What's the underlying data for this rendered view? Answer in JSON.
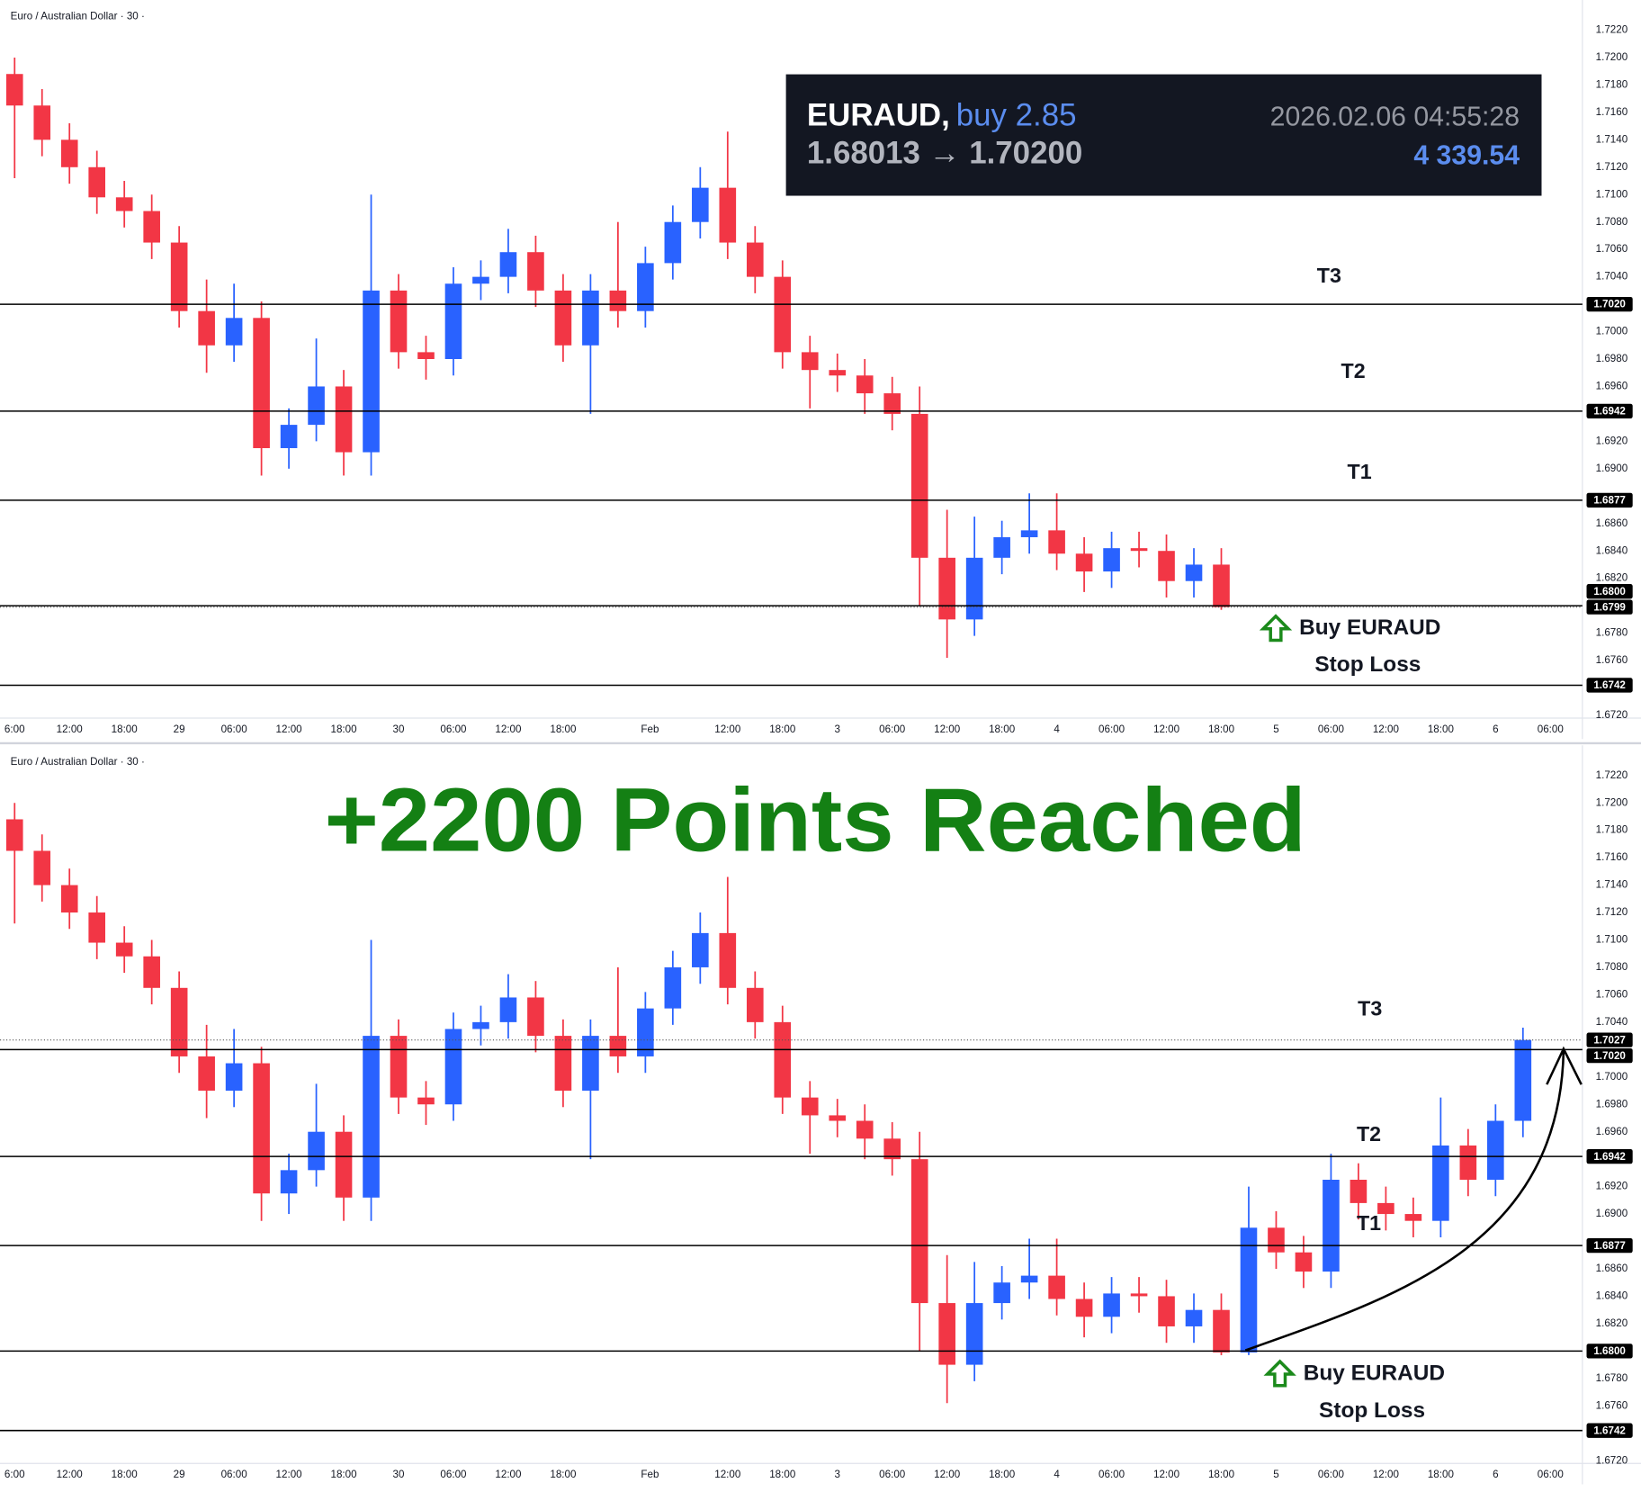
{
  "chart_data": [
    {
      "type": "candlestick",
      "title": "Euro / Australian Dollar · 30 ·",
      "up_color": "#2962ff",
      "down_color": "#f23645",
      "xlim": [
        4.4,
        177.5
      ],
      "ylim": [
        1.6718,
        1.7242
      ],
      "xticks": [
        {
          "value": 6,
          "label": "6:00"
        },
        {
          "value": 12,
          "label": "12:00"
        },
        {
          "value": 18,
          "label": "18:00"
        },
        {
          "value": 24,
          "label": "29"
        },
        {
          "value": 30,
          "label": "06:00"
        },
        {
          "value": 36,
          "label": "12:00"
        },
        {
          "value": 42,
          "label": "18:00"
        },
        {
          "value": 48,
          "label": "30"
        },
        {
          "value": 54,
          "label": "06:00"
        },
        {
          "value": 60,
          "label": "12:00"
        },
        {
          "value": 66,
          "label": "18:00"
        },
        {
          "value": 75.5,
          "label": "Feb"
        },
        {
          "value": 84,
          "label": "12:00"
        },
        {
          "value": 90,
          "label": "18:00"
        },
        {
          "value": 96,
          "label": "3"
        },
        {
          "value": 102,
          "label": "06:00"
        },
        {
          "value": 108,
          "label": "12:00"
        },
        {
          "value": 114,
          "label": "18:00"
        },
        {
          "value": 120,
          "label": "4"
        },
        {
          "value": 126,
          "label": "06:00"
        },
        {
          "value": 132,
          "label": "12:00"
        },
        {
          "value": 138,
          "label": "18:00"
        },
        {
          "value": 144,
          "label": "5"
        },
        {
          "value": 150,
          "label": "06:00"
        },
        {
          "value": 156,
          "label": "12:00"
        },
        {
          "value": 162,
          "label": "18:00"
        },
        {
          "value": 168,
          "label": "6"
        },
        {
          "value": 174,
          "label": "06:00"
        }
      ],
      "yticks": [
        {
          "value": 1.672,
          "label": "1.6720"
        },
        {
          "value": 1.676,
          "label": "1.6760"
        },
        {
          "value": 1.678,
          "label": "1.6780"
        },
        {
          "value": 1.682,
          "label": "1.6820"
        },
        {
          "value": 1.684,
          "label": "1.6840"
        },
        {
          "value": 1.686,
          "label": "1.6860"
        },
        {
          "value": 1.69,
          "label": "1.6900"
        },
        {
          "value": 1.692,
          "label": "1.6920"
        },
        {
          "value": 1.696,
          "label": "1.6960"
        },
        {
          "value": 1.698,
          "label": "1.6980"
        },
        {
          "value": 1.7,
          "label": "1.7000"
        },
        {
          "value": 1.704,
          "label": "1.7040"
        },
        {
          "value": 1.706,
          "label": "1.7060"
        },
        {
          "value": 1.708,
          "label": "1.7080"
        },
        {
          "value": 1.71,
          "label": "1.7100"
        },
        {
          "value": 1.712,
          "label": "1.7120"
        },
        {
          "value": 1.714,
          "label": "1.7140"
        },
        {
          "value": 1.716,
          "label": "1.7160"
        },
        {
          "value": 1.718,
          "label": "1.7180"
        },
        {
          "value": 1.72,
          "label": "1.7200"
        },
        {
          "value": 1.722,
          "label": "1.7220"
        }
      ],
      "x": [
        6,
        9,
        12,
        15,
        18,
        21,
        24,
        27,
        30,
        33,
        36,
        39,
        42,
        45,
        48,
        51,
        54,
        57,
        60,
        63,
        66,
        69,
        72,
        75,
        78,
        81,
        84,
        87,
        90,
        93,
        96,
        99,
        102,
        105,
        108,
        111,
        114,
        117,
        120,
        123,
        126,
        129,
        132,
        135,
        138
      ],
      "open": [
        1.7188,
        1.7165,
        1.714,
        1.712,
        1.7098,
        1.7088,
        1.7065,
        1.7015,
        1.699,
        1.701,
        1.6915,
        1.6932,
        1.696,
        1.6912,
        1.703,
        1.6985,
        1.698,
        1.7035,
        1.704,
        1.7058,
        1.703,
        1.699,
        1.703,
        1.7015,
        1.705,
        1.708,
        1.7105,
        1.7065,
        1.704,
        1.6985,
        1.6972,
        1.6968,
        1.6955,
        1.694,
        1.6835,
        1.679,
        1.6835,
        1.685,
        1.6855,
        1.6838,
        1.6825,
        1.6842,
        1.684,
        1.6818,
        1.683
      ],
      "high": [
        1.72,
        1.7177,
        1.7152,
        1.7132,
        1.711,
        1.71,
        1.7077,
        1.7038,
        1.7035,
        1.7022,
        1.6944,
        1.6995,
        1.6972,
        1.71,
        1.7042,
        1.6997,
        1.7047,
        1.7052,
        1.7075,
        1.707,
        1.7042,
        1.7042,
        1.708,
        1.7062,
        1.7092,
        1.712,
        1.7146,
        1.7077,
        1.7052,
        1.6997,
        1.6984,
        1.698,
        1.6967,
        1.696,
        1.687,
        1.6865,
        1.6862,
        1.6882,
        1.6882,
        1.685,
        1.6854,
        1.6854,
        1.6852,
        1.6842,
        1.6842
      ],
      "low": [
        1.7112,
        1.7128,
        1.7108,
        1.7086,
        1.7076,
        1.7053,
        1.7003,
        1.697,
        1.6978,
        1.6895,
        1.69,
        1.692,
        1.6895,
        1.6895,
        1.6973,
        1.6965,
        1.6968,
        1.7023,
        1.7028,
        1.7018,
        1.6978,
        1.694,
        1.7003,
        1.7003,
        1.7038,
        1.7068,
        1.7053,
        1.7028,
        1.6973,
        1.6944,
        1.6956,
        1.694,
        1.6928,
        1.68,
        1.6762,
        1.6778,
        1.6823,
        1.6838,
        1.6826,
        1.681,
        1.6813,
        1.6828,
        1.6806,
        1.6806,
        1.6797
      ],
      "close": [
        1.7165,
        1.714,
        1.712,
        1.7098,
        1.7088,
        1.7065,
        1.7015,
        1.699,
        1.701,
        1.6915,
        1.6932,
        1.696,
        1.6912,
        1.703,
        1.6985,
        1.698,
        1.7035,
        1.704,
        1.7058,
        1.703,
        1.699,
        1.703,
        1.7015,
        1.705,
        1.708,
        1.7105,
        1.7065,
        1.704,
        1.6985,
        1.6972,
        1.6968,
        1.6955,
        1.694,
        1.6835,
        1.679,
        1.6835,
        1.685,
        1.6855,
        1.6838,
        1.6825,
        1.6842,
        1.684,
        1.6818,
        1.683,
        1.6799
      ],
      "levels": [
        {
          "value": 1.702,
          "label": "1.7020",
          "name": "T3"
        },
        {
          "value": 1.6942,
          "label": "1.6942",
          "name": "T2"
        },
        {
          "value": 1.6877,
          "label": "1.6877",
          "name": "T1"
        },
        {
          "value": 1.68,
          "label": "1.6800",
          "name": "Buy EURAUD"
        },
        {
          "value": 1.6742,
          "label": "1.6742",
          "name": "Stop Loss"
        }
      ],
      "last_price": {
        "value": 1.6799,
        "label": "1.6799"
      },
      "info_box": {
        "symbol": "EURAUD,",
        "side": "buy 2.85",
        "prices": "1.68013 → 1.70200",
        "time": "2026.02.06 04:55:28",
        "profit": "4 339.54"
      }
    },
    {
      "type": "candlestick",
      "title": "Euro / Australian Dollar · 30 ·",
      "headline": "+2200 Points Reached",
      "up_color": "#2962ff",
      "down_color": "#f23645",
      "xlim": [
        4.4,
        177.5
      ],
      "ylim": [
        1.6718,
        1.7242
      ],
      "xticks": [
        {
          "value": 6,
          "label": "6:00"
        },
        {
          "value": 12,
          "label": "12:00"
        },
        {
          "value": 18,
          "label": "18:00"
        },
        {
          "value": 24,
          "label": "29"
        },
        {
          "value": 30,
          "label": "06:00"
        },
        {
          "value": 36,
          "label": "12:00"
        },
        {
          "value": 42,
          "label": "18:00"
        },
        {
          "value": 48,
          "label": "30"
        },
        {
          "value": 54,
          "label": "06:00"
        },
        {
          "value": 60,
          "label": "12:00"
        },
        {
          "value": 66,
          "label": "18:00"
        },
        {
          "value": 75.5,
          "label": "Feb"
        },
        {
          "value": 84,
          "label": "12:00"
        },
        {
          "value": 90,
          "label": "18:00"
        },
        {
          "value": 96,
          "label": "3"
        },
        {
          "value": 102,
          "label": "06:00"
        },
        {
          "value": 108,
          "label": "12:00"
        },
        {
          "value": 114,
          "label": "18:00"
        },
        {
          "value": 120,
          "label": "4"
        },
        {
          "value": 126,
          "label": "06:00"
        },
        {
          "value": 132,
          "label": "12:00"
        },
        {
          "value": 138,
          "label": "18:00"
        },
        {
          "value": 144,
          "label": "5"
        },
        {
          "value": 150,
          "label": "06:00"
        },
        {
          "value": 156,
          "label": "12:00"
        },
        {
          "value": 162,
          "label": "18:00"
        },
        {
          "value": 168,
          "label": "6"
        },
        {
          "value": 174,
          "label": "06:00"
        }
      ],
      "yticks": [
        {
          "value": 1.672,
          "label": "1.6720"
        },
        {
          "value": 1.676,
          "label": "1.6760"
        },
        {
          "value": 1.678,
          "label": "1.6780"
        },
        {
          "value": 1.682,
          "label": "1.6820"
        },
        {
          "value": 1.684,
          "label": "1.6840"
        },
        {
          "value": 1.686,
          "label": "1.6860"
        },
        {
          "value": 1.69,
          "label": "1.6900"
        },
        {
          "value": 1.692,
          "label": "1.6920"
        },
        {
          "value": 1.696,
          "label": "1.6960"
        },
        {
          "value": 1.698,
          "label": "1.6980"
        },
        {
          "value": 1.7,
          "label": "1.7000"
        },
        {
          "value": 1.704,
          "label": "1.7040"
        },
        {
          "value": 1.706,
          "label": "1.7060"
        },
        {
          "value": 1.708,
          "label": "1.7080"
        },
        {
          "value": 1.71,
          "label": "1.7100"
        },
        {
          "value": 1.712,
          "label": "1.7120"
        },
        {
          "value": 1.714,
          "label": "1.7140"
        },
        {
          "value": 1.716,
          "label": "1.7160"
        },
        {
          "value": 1.718,
          "label": "1.7180"
        },
        {
          "value": 1.72,
          "label": "1.7200"
        },
        {
          "value": 1.722,
          "label": "1.7220"
        }
      ],
      "x": [
        6,
        9,
        12,
        15,
        18,
        21,
        24,
        27,
        30,
        33,
        36,
        39,
        42,
        45,
        48,
        51,
        54,
        57,
        60,
        63,
        66,
        69,
        72,
        75,
        78,
        81,
        84,
        87,
        90,
        93,
        96,
        99,
        102,
        105,
        108,
        111,
        114,
        117,
        120,
        123,
        126,
        129,
        132,
        135,
        138,
        141,
        144,
        147,
        150,
        153,
        156,
        159,
        162,
        165,
        168,
        171
      ],
      "open": [
        1.7188,
        1.7165,
        1.714,
        1.712,
        1.7098,
        1.7088,
        1.7065,
        1.7015,
        1.699,
        1.701,
        1.6915,
        1.6932,
        1.696,
        1.6912,
        1.703,
        1.6985,
        1.698,
        1.7035,
        1.704,
        1.7058,
        1.703,
        1.699,
        1.703,
        1.7015,
        1.705,
        1.708,
        1.7105,
        1.7065,
        1.704,
        1.6985,
        1.6972,
        1.6968,
        1.6955,
        1.694,
        1.6835,
        1.679,
        1.6835,
        1.685,
        1.6855,
        1.6838,
        1.6825,
        1.6842,
        1.684,
        1.6818,
        1.683,
        1.6799,
        1.689,
        1.6872,
        1.6858,
        1.6925,
        1.6908,
        1.69,
        1.6895,
        1.695,
        1.6925,
        1.6968
      ],
      "high": [
        1.72,
        1.7177,
        1.7152,
        1.7132,
        1.711,
        1.71,
        1.7077,
        1.7038,
        1.7035,
        1.7022,
        1.6944,
        1.6995,
        1.6972,
        1.71,
        1.7042,
        1.6997,
        1.7047,
        1.7052,
        1.7075,
        1.707,
        1.7042,
        1.7042,
        1.708,
        1.7062,
        1.7092,
        1.712,
        1.7146,
        1.7077,
        1.7052,
        1.6997,
        1.6984,
        1.698,
        1.6967,
        1.696,
        1.687,
        1.6865,
        1.6862,
        1.6882,
        1.6882,
        1.685,
        1.6854,
        1.6854,
        1.6852,
        1.6842,
        1.6842,
        1.692,
        1.6902,
        1.6884,
        1.6944,
        1.6937,
        1.692,
        1.6912,
        1.6985,
        1.6962,
        1.698,
        1.7036
      ],
      "low": [
        1.7112,
        1.7128,
        1.7108,
        1.7086,
        1.7076,
        1.7053,
        1.7003,
        1.697,
        1.6978,
        1.6895,
        1.69,
        1.692,
        1.6895,
        1.6895,
        1.6973,
        1.6965,
        1.6968,
        1.7023,
        1.7028,
        1.7018,
        1.6978,
        1.694,
        1.7003,
        1.7003,
        1.7038,
        1.7068,
        1.7053,
        1.7028,
        1.6973,
        1.6944,
        1.6956,
        1.694,
        1.6928,
        1.68,
        1.6762,
        1.6778,
        1.6823,
        1.6838,
        1.6826,
        1.681,
        1.6813,
        1.6828,
        1.6806,
        1.6806,
        1.6797,
        1.6797,
        1.686,
        1.6846,
        1.6846,
        1.6896,
        1.6888,
        1.6883,
        1.6883,
        1.6913,
        1.6913,
        1.6956
      ],
      "close": [
        1.7165,
        1.714,
        1.712,
        1.7098,
        1.7088,
        1.7065,
        1.7015,
        1.699,
        1.701,
        1.6915,
        1.6932,
        1.696,
        1.6912,
        1.703,
        1.6985,
        1.698,
        1.7035,
        1.704,
        1.7058,
        1.703,
        1.699,
        1.703,
        1.7015,
        1.705,
        1.708,
        1.7105,
        1.7065,
        1.704,
        1.6985,
        1.6972,
        1.6968,
        1.6955,
        1.694,
        1.6835,
        1.679,
        1.6835,
        1.685,
        1.6855,
        1.6838,
        1.6825,
        1.6842,
        1.684,
        1.6818,
        1.683,
        1.6799,
        1.689,
        1.6872,
        1.6858,
        1.6925,
        1.6908,
        1.69,
        1.6895,
        1.695,
        1.6925,
        1.6968,
        1.7027
      ],
      "levels": [
        {
          "value": 1.702,
          "label": "1.7020",
          "name": "T3"
        },
        {
          "value": 1.6942,
          "label": "1.6942",
          "name": "T2"
        },
        {
          "value": 1.6877,
          "label": "1.6877",
          "name": "T1"
        },
        {
          "value": 1.68,
          "label": "1.6800",
          "name": "Buy EURAUD"
        },
        {
          "value": 1.6742,
          "label": "1.6742",
          "name": "Stop Loss"
        }
      ],
      "last_price": {
        "value": 1.7027,
        "label": "1.7027"
      }
    }
  ]
}
